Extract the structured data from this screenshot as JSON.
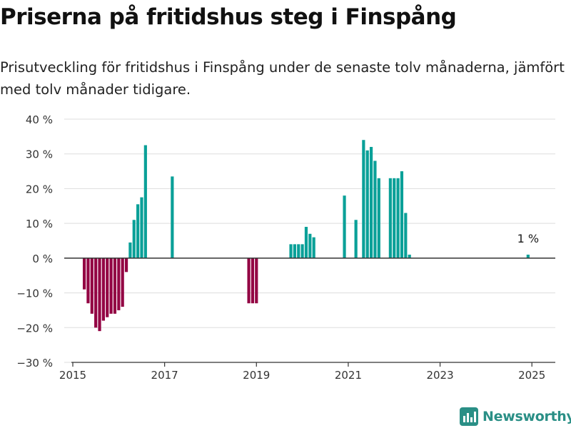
{
  "header": {
    "title": "Priserna på fritidshus steg i Finspång",
    "subtitle": "Prisutveckling för fritidshus i Finspång under de senaste tolv månaderna, jämfört med tolv månader tidigare."
  },
  "brand": {
    "name": "Newsworthy",
    "logo_icon": "bar-chart-logo-icon",
    "color": "#2a8f86"
  },
  "chart_data": {
    "type": "bar",
    "x_unit": "month",
    "y_unit": "percent",
    "xlim": [
      "2015-01",
      "2025-06"
    ],
    "ylim": [
      -30,
      40
    ],
    "x_ticks": [
      "2015",
      "2017",
      "2019",
      "2021",
      "2023",
      "2025"
    ],
    "y_ticks": [
      "40 %",
      "30 %",
      "20 %",
      "10 %",
      "0 %",
      "−10 %",
      "−20 %",
      "−30 %"
    ],
    "grid": true,
    "colors": {
      "positive": "#0aa098",
      "negative": "#930343",
      "zero_line": "#333333",
      "grid": "#dddddd"
    },
    "annotation": {
      "date": "2024-12",
      "text": "1 %"
    },
    "points": [
      {
        "date": "2015-04",
        "value": -9
      },
      {
        "date": "2015-05",
        "value": -13
      },
      {
        "date": "2015-06",
        "value": -16
      },
      {
        "date": "2015-07",
        "value": -20
      },
      {
        "date": "2015-08",
        "value": -21
      },
      {
        "date": "2015-09",
        "value": -18
      },
      {
        "date": "2015-10",
        "value": -17
      },
      {
        "date": "2015-11",
        "value": -16
      },
      {
        "date": "2015-12",
        "value": -16
      },
      {
        "date": "2016-01",
        "value": -15
      },
      {
        "date": "2016-02",
        "value": -14
      },
      {
        "date": "2016-03",
        "value": -4
      },
      {
        "date": "2016-04",
        "value": 4.5
      },
      {
        "date": "2016-05",
        "value": 11
      },
      {
        "date": "2016-06",
        "value": 15.5
      },
      {
        "date": "2016-07",
        "value": 17.5
      },
      {
        "date": "2016-08",
        "value": 32.5
      },
      {
        "date": "2017-03",
        "value": 23.5
      },
      {
        "date": "2018-11",
        "value": -13
      },
      {
        "date": "2018-12",
        "value": -13
      },
      {
        "date": "2019-01",
        "value": -13
      },
      {
        "date": "2019-10",
        "value": 4
      },
      {
        "date": "2019-11",
        "value": 4
      },
      {
        "date": "2019-12",
        "value": 4
      },
      {
        "date": "2020-01",
        "value": 4
      },
      {
        "date": "2020-02",
        "value": 9
      },
      {
        "date": "2020-03",
        "value": 7
      },
      {
        "date": "2020-04",
        "value": 6
      },
      {
        "date": "2020-12",
        "value": 18
      },
      {
        "date": "2021-03",
        "value": 11
      },
      {
        "date": "2021-05",
        "value": 34
      },
      {
        "date": "2021-06",
        "value": 31
      },
      {
        "date": "2021-07",
        "value": 32
      },
      {
        "date": "2021-08",
        "value": 28
      },
      {
        "date": "2021-09",
        "value": 23
      },
      {
        "date": "2021-12",
        "value": 23
      },
      {
        "date": "2022-01",
        "value": 23
      },
      {
        "date": "2022-02",
        "value": 23
      },
      {
        "date": "2022-03",
        "value": 25
      },
      {
        "date": "2022-04",
        "value": 13
      },
      {
        "date": "2022-05",
        "value": 1
      },
      {
        "date": "2024-12",
        "value": 1
      }
    ]
  }
}
